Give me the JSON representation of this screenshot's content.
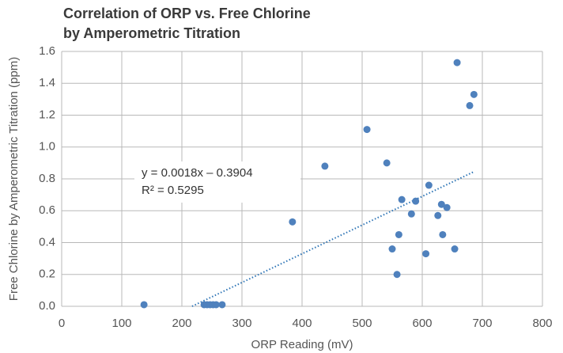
{
  "chart_data": {
    "type": "scatter",
    "title": [
      "Correlation of ORP vs. Free Chlorine",
      "by Amperometric Titration"
    ],
    "x_label": "ORP Reading (mV)",
    "y_label": "Free Chlorine by Amperometric Titration (ppm)",
    "annotation": [
      "y = 0.0018x – 0.3904",
      "R² = 0.5295"
    ],
    "color": "#4f81bd",
    "x": [
      137,
      237,
      242,
      247,
      252,
      257,
      267,
      384,
      438,
      508,
      541,
      566,
      589,
      582,
      561,
      550,
      558,
      611,
      606,
      632,
      626,
      641,
      634,
      654,
      658,
      679,
      686
    ],
    "values": [
      0.01,
      0.01,
      0.01,
      0.01,
      0.01,
      0.01,
      0.01,
      0.53,
      0.88,
      1.11,
      0.9,
      0.67,
      0.66,
      0.58,
      0.45,
      0.36,
      0.2,
      0.76,
      0.33,
      0.64,
      0.57,
      0.62,
      0.45,
      0.36,
      1.53,
      1.26,
      1.33
    ],
    "trendline": {
      "color": "#2e75b6",
      "x": [
        217,
        686
      ],
      "values": [
        0,
        0.845
      ]
    },
    "xlim": [
      0,
      800
    ],
    "xticks": [
      0,
      100,
      200,
      300,
      400,
      500,
      600,
      700,
      800
    ],
    "ylim": [
      0,
      1.6
    ],
    "yticks": [
      {
        "value": 0,
        "label": "0.0"
      },
      0.2,
      0.4,
      0.6,
      0.8,
      {
        "value": 1,
        "label": "1.0"
      },
      1.2,
      1.4,
      1.6
    ],
    "grid": true
  }
}
